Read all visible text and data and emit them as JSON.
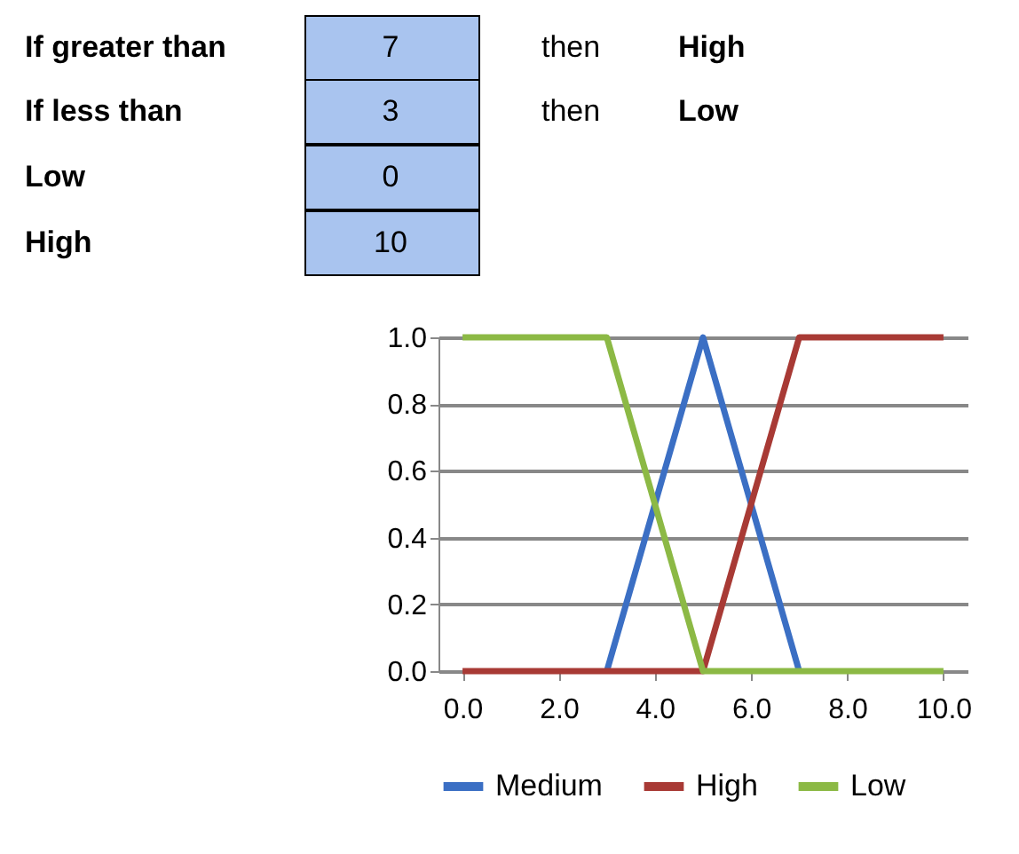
{
  "chart_data": {
    "type": "line",
    "x": [
      0,
      1,
      2,
      3,
      4,
      5,
      6,
      7,
      8,
      9,
      10
    ],
    "series": [
      {
        "name": "Medium",
        "color": "#3b6fc4",
        "values": [
          null,
          null,
          null,
          0,
          0.5,
          1,
          0.5,
          0,
          null,
          null,
          null
        ]
      },
      {
        "name": "High",
        "color": "#a83a35",
        "values": [
          0,
          0,
          0,
          0,
          0,
          0,
          0.5,
          1,
          1,
          1,
          1
        ]
      },
      {
        "name": "Low",
        "color": "#8cb945",
        "values": [
          1,
          1,
          1,
          1,
          0.5,
          0,
          0,
          0,
          0,
          0,
          0
        ]
      }
    ],
    "xlim": [
      -0.5,
      10.5
    ],
    "xticks": [
      {
        "value": 0,
        "label": "0.0"
      },
      {
        "value": 2,
        "label": "2.0"
      },
      {
        "value": 4,
        "label": "4.0"
      },
      {
        "value": 6,
        "label": "6.0"
      },
      {
        "value": 8,
        "label": "8.0"
      },
      {
        "value": 10,
        "label": "10.0"
      }
    ],
    "ylim": [
      0,
      1
    ],
    "yticks": [
      {
        "value": 0,
        "label": "0.0"
      },
      {
        "value": 0.2,
        "label": "0.2"
      },
      {
        "value": 0.4,
        "label": "0.4"
      },
      {
        "value": 0.6,
        "label": "0.6"
      },
      {
        "value": 0.8,
        "label": "0.8"
      },
      {
        "value": 1,
        "label": "1.0"
      }
    ],
    "grid": "y",
    "legend": "bottom",
    "marker": "none",
    "line_style": "solid",
    "annotations": [
      "If greater than",
      "7",
      "then",
      "High",
      "If less than",
      "3",
      "then",
      "Low",
      "Low",
      "0",
      "High",
      "10"
    ]
  }
}
